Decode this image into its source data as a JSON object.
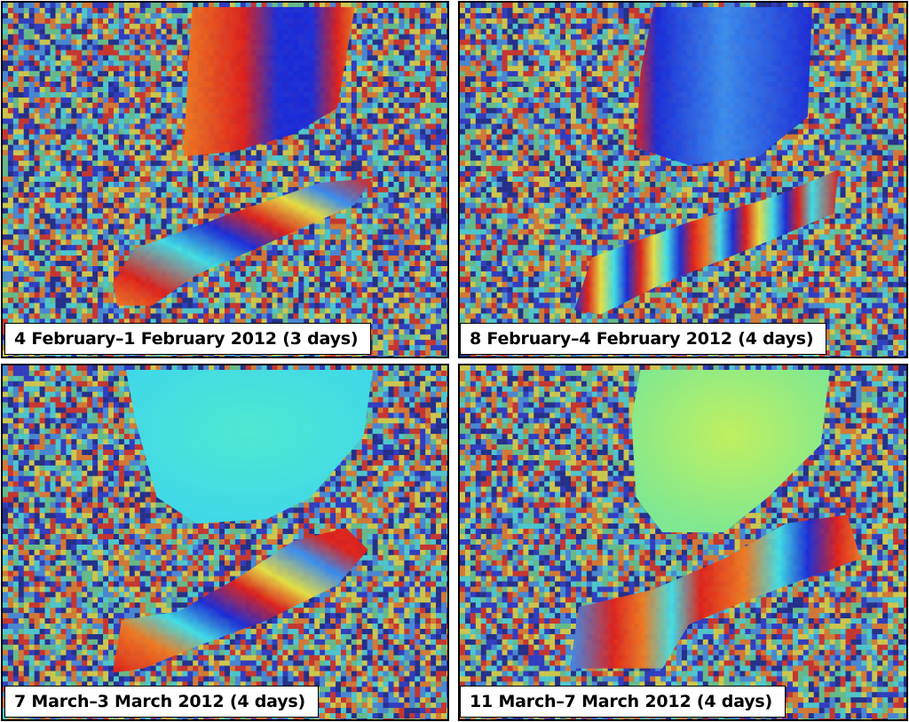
{
  "figure": {
    "panels": [
      {
        "caption": "4 February–1 February 2012 (3 days)"
      },
      {
        "caption": "8 February–4 February 2012 (4 days)"
      },
      {
        "caption": "7 March–3 March 2012 (4 days)"
      },
      {
        "caption": "11 March–7 March 2012 (4 days)"
      }
    ],
    "colors": {
      "red": "#e0201a",
      "orange": "#f07a20",
      "yellow": "#e8e040",
      "green": "#60d090",
      "cyan": "#40e0e8",
      "light_blue": "#3a8cf0",
      "blue": "#1a2ad8",
      "dark_blue": "#0a1890"
    }
  }
}
